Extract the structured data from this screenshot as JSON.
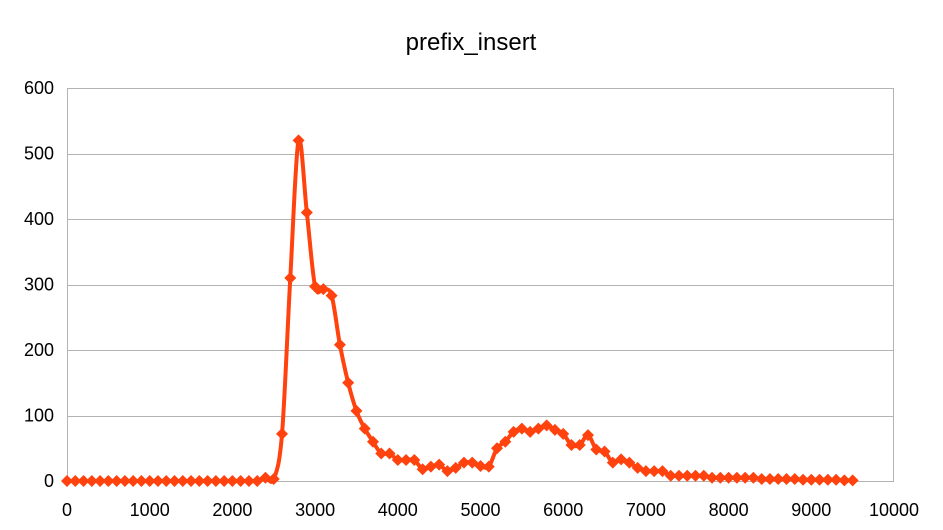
{
  "chart_data": {
    "type": "line",
    "title": "prefix_insert",
    "xlabel": "",
    "ylabel": "",
    "xlim": [
      0,
      10000
    ],
    "ylim": [
      0,
      600
    ],
    "x_ticks": [
      0,
      1000,
      2000,
      3000,
      4000,
      5000,
      6000,
      7000,
      8000,
      9000,
      10000
    ],
    "y_ticks": [
      0,
      100,
      200,
      300,
      400,
      500,
      600
    ],
    "grid": "horizontal",
    "legend": "none",
    "series": [
      {
        "color": "#ff420e",
        "marker": "diamond",
        "smooth": true,
        "x": [
          0,
          100,
          200,
          300,
          400,
          500,
          600,
          700,
          800,
          900,
          1000,
          1100,
          1200,
          1300,
          1400,
          1500,
          1600,
          1700,
          1800,
          1900,
          2000,
          2100,
          2200,
          2300,
          2400,
          2500,
          2600,
          2700,
          2800,
          2900,
          3000,
          3100,
          3200,
          3300,
          3400,
          3500,
          3600,
          3700,
          3800,
          3900,
          4000,
          4100,
          4200,
          4300,
          4400,
          4500,
          4600,
          4700,
          4800,
          4900,
          5000,
          5100,
          5200,
          5300,
          5400,
          5500,
          5600,
          5700,
          5800,
          5900,
          6000,
          6100,
          6200,
          6300,
          6400,
          6500,
          6600,
          6700,
          6800,
          6900,
          7000,
          7100,
          7200,
          7300,
          7400,
          7500,
          7600,
          7700,
          7800,
          7900,
          8000,
          8100,
          8200,
          8300,
          8400,
          8500,
          8600,
          8700,
          8800,
          8900,
          9000,
          9100,
          9200,
          9300,
          9400,
          9500
        ],
        "y": [
          0,
          0,
          0,
          0,
          0,
          0,
          0,
          0,
          0,
          0,
          0,
          0,
          0,
          0,
          0,
          0,
          0,
          0,
          0,
          0,
          0,
          0,
          0,
          0,
          5,
          3,
          72,
          310,
          520,
          410,
          297,
          293,
          283,
          208,
          150,
          107,
          80,
          60,
          42,
          42,
          32,
          32,
          32,
          18,
          22,
          25,
          15,
          20,
          28,
          28,
          23,
          22,
          50,
          60,
          75,
          80,
          75,
          80,
          85,
          78,
          72,
          55,
          55,
          70,
          48,
          45,
          28,
          33,
          28,
          20,
          15,
          15,
          15,
          8,
          8,
          8,
          8,
          8,
          5,
          5,
          5,
          5,
          5,
          5,
          3,
          3,
          3,
          3,
          3,
          2,
          2,
          2,
          2,
          2,
          1,
          1
        ]
      }
    ]
  }
}
